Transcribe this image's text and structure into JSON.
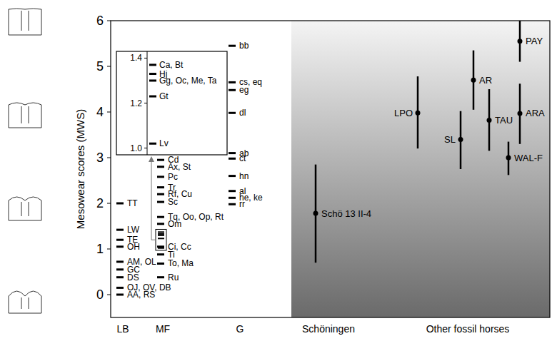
{
  "chart_data": {
    "type": "scatter",
    "y_label": "Mesowear scores (MWS)",
    "ylim": [
      -0.5,
      6
    ],
    "yticks": [
      0,
      1,
      2,
      3,
      4,
      5,
      6
    ],
    "categories": [
      "LB",
      "MF",
      "G",
      "Schöningen",
      "Other fossil horses"
    ],
    "groups": [
      {
        "labels": [
          "TT",
          "LW",
          "TE",
          "OH",
          "AM, OL",
          "GC",
          "DS",
          "OJ, OV, DB",
          "AA, RS"
        ],
        "values": [
          2.0,
          1.42,
          1.2,
          1.05,
          0.72,
          0.55,
          0.38,
          0.15,
          0
        ]
      },
      {
        "labels": [
          "Cd",
          "Ax, St",
          "Pc",
          "Tr",
          "Rf, Cu",
          "Sc",
          "Tq, Oo, Op, Rt",
          "Om",
          "Ci, Cc",
          "Ti",
          "To, Ma",
          "Ru"
        ],
        "values": [
          2.95,
          2.8,
          2.58,
          2.35,
          2.2,
          2.03,
          1.7,
          1.55,
          1.05,
          0.88,
          0.68,
          0.38
        ]
      },
      {
        "labels": [
          "bb",
          "cs, eq",
          "eg",
          "dl",
          "ab",
          "ct",
          "hn",
          "al",
          "he, ke",
          "rr"
        ],
        "values": [
          5.45,
          4.65,
          4.48,
          3.98,
          3.1,
          2.98,
          2.6,
          2.27,
          2.12,
          1.98
        ]
      },
      {
        "labels": [
          "Schö 13 II-4"
        ],
        "values": [
          1.78
        ],
        "low": [
          0.7
        ],
        "high": [
          2.85
        ]
      },
      {
        "labels": [
          "LPO",
          "AR",
          "SL",
          "TAU",
          "ARA",
          "WAL-F",
          "PAY"
        ],
        "values": [
          3.98,
          4.7,
          3.4,
          3.82,
          3.97,
          3.0,
          5.55
        ],
        "low": [
          3.2,
          4.05,
          2.75,
          3.15,
          3.3,
          2.62,
          5.1
        ],
        "high": [
          4.78,
          5.35,
          4.02,
          4.5,
          4.62,
          3.35,
          6.0
        ]
      }
    ],
    "inset": {
      "ylim": [
        0.97,
        1.43
      ],
      "yticks": [
        {
          "value": 1,
          "label": "1.0"
        },
        {
          "value": 1.2,
          "label": "1.2"
        },
        {
          "value": 1.4,
          "label": "1.4"
        }
      ],
      "labels": [
        "Ca, Bt",
        "Hj",
        "Gg, Oc, Me, Ta",
        "Gt",
        "Lv"
      ],
      "values": [
        1.37,
        1.33,
        1.3,
        1.23,
        1.02
      ]
    }
  }
}
